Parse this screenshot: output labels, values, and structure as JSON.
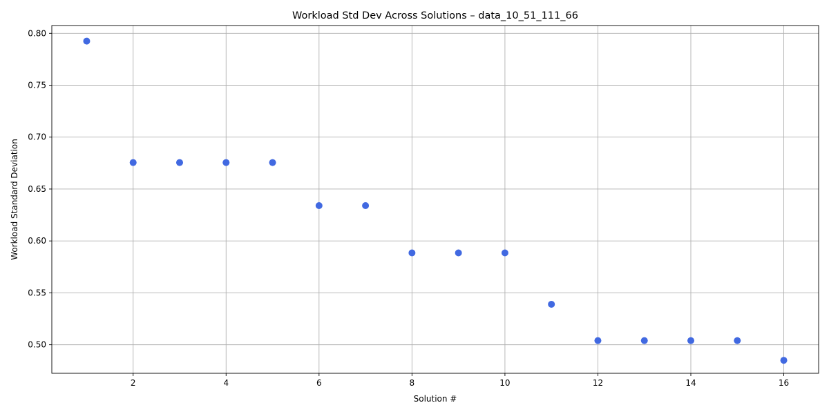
{
  "chart_data": {
    "type": "scatter",
    "title": "Workload Std Dev Across Solutions – data_10_51_111_66",
    "xlabel": "Solution #",
    "ylabel": "Workload Standard Deviation",
    "x": [
      1,
      2,
      3,
      4,
      5,
      6,
      7,
      8,
      9,
      10,
      11,
      12,
      13,
      14,
      15,
      16
    ],
    "y": [
      0.7925,
      0.6755,
      0.6755,
      0.6755,
      0.6755,
      0.634,
      0.634,
      0.5885,
      0.5885,
      0.5885,
      0.539,
      0.504,
      0.504,
      0.504,
      0.504,
      0.485
    ],
    "xlim": [
      0.25,
      16.75
    ],
    "ylim": [
      0.4725,
      0.8075
    ],
    "xticks": [
      2,
      4,
      6,
      8,
      10,
      12,
      14,
      16
    ],
    "xtick_labels": [
      "2",
      "4",
      "6",
      "8",
      "10",
      "12",
      "14",
      "16"
    ],
    "yticks": [
      0.5,
      0.55,
      0.6,
      0.65,
      0.7,
      0.75,
      0.8
    ],
    "ytick_labels": [
      "0.50",
      "0.55",
      "0.60",
      "0.65",
      "0.70",
      "0.75",
      "0.80"
    ],
    "grid": true,
    "marker_color": "#4169e1"
  }
}
